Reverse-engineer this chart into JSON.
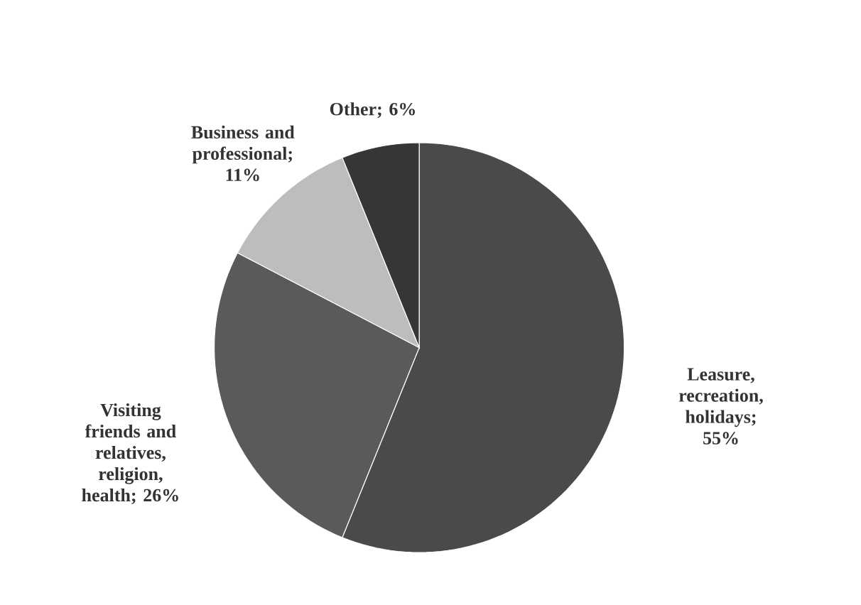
{
  "chart_data": {
    "type": "pie",
    "categories": [
      "Leasure, recreation, holidays; 55%",
      "Visiting friends and relatives, religion, health; 26%",
      "Business and professional; 11%",
      "Other; 6%"
    ],
    "values": [
      55,
      26,
      11,
      6
    ],
    "colors": [
      "#4a4a4a",
      "#5a5a5a",
      "#bdbdbd",
      "#363636"
    ]
  }
}
